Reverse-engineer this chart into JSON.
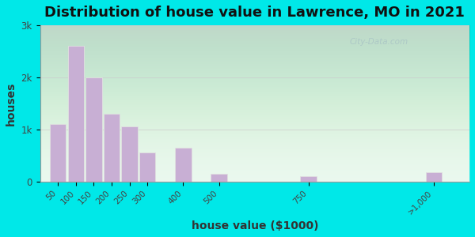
{
  "title": "Distribution of house value in Lawrence, MO in 2021",
  "xlabel": "house value ($1000)",
  "ylabel": "houses",
  "bar_positions": [
    50,
    100,
    150,
    200,
    250,
    300,
    400,
    500,
    750,
    1100
  ],
  "bar_widths": [
    45,
    45,
    45,
    45,
    45,
    45,
    45,
    45,
    45,
    45
  ],
  "bar_values": [
    1100,
    2600,
    2000,
    1300,
    1050,
    550,
    650,
    150,
    100,
    175
  ],
  "xtick_positions": [
    50,
    100,
    150,
    200,
    250,
    300,
    400,
    500,
    750,
    1100
  ],
  "xtick_labels": [
    "50",
    "100",
    "150",
    "200",
    "250",
    "300",
    "400",
    "500",
    "750",
    ">1,000"
  ],
  "bar_color": "#c8afd4",
  "bar_edgecolor": "#e0e0e0",
  "background_outer": "#00e8e8",
  "ylim": [
    0,
    3000
  ],
  "xlim": [
    0,
    1200
  ],
  "yticks": [
    0,
    1000,
    2000,
    3000
  ],
  "ytick_labels": [
    "0",
    "1k",
    "2k",
    "3k"
  ],
  "title_fontsize": 13,
  "axis_label_fontsize": 10,
  "watermark": "City-Data.com"
}
